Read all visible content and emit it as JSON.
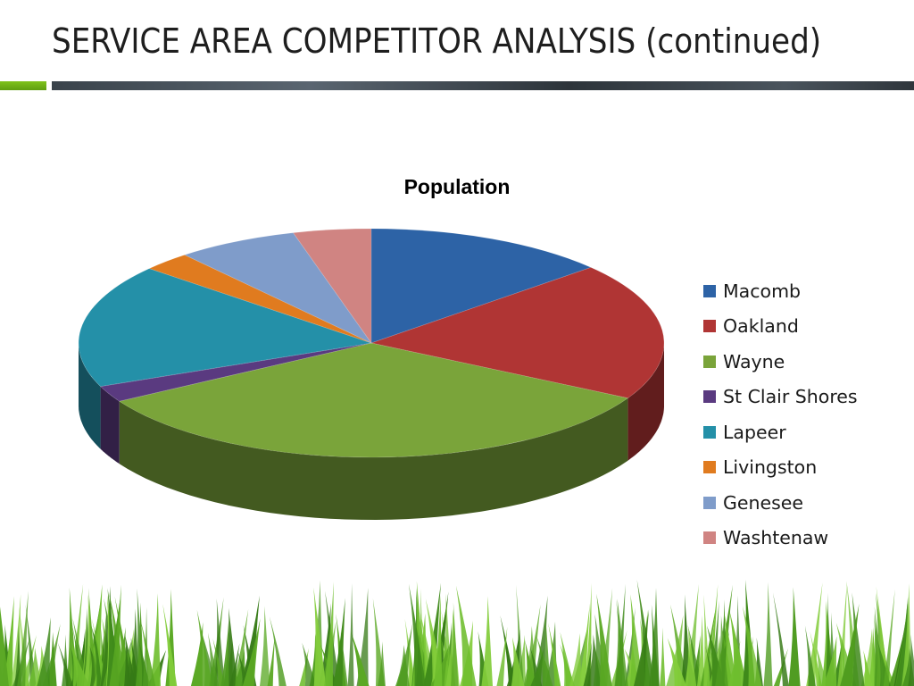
{
  "slide": {
    "title": "SERVICE AREA COMPETITOR ANALYSIS (continued)"
  },
  "chart_data": {
    "type": "pie",
    "title": "Population",
    "style": "3d",
    "legend_position": "right",
    "slices": [
      {
        "name": "Macomb",
        "value": 13.5,
        "color": "#2d63a6"
      },
      {
        "name": "Oakland",
        "value": 19.5,
        "color": "#b03534"
      },
      {
        "name": "Wayne",
        "value": 33.5,
        "color": "#7aa43a"
      },
      {
        "name": "St Clair Shores",
        "value": 2.3,
        "color": "#5a3a80"
      },
      {
        "name": "Lapeer",
        "value": 17.5,
        "color": "#2490a8"
      },
      {
        "name": "Livingston",
        "value": 2.7,
        "color": "#e07b1f"
      },
      {
        "name": "Genesee",
        "value": 6.7,
        "color": "#7f9cca"
      },
      {
        "name": "Washtenaw",
        "value": 4.3,
        "color": "#d08482"
      }
    ]
  }
}
